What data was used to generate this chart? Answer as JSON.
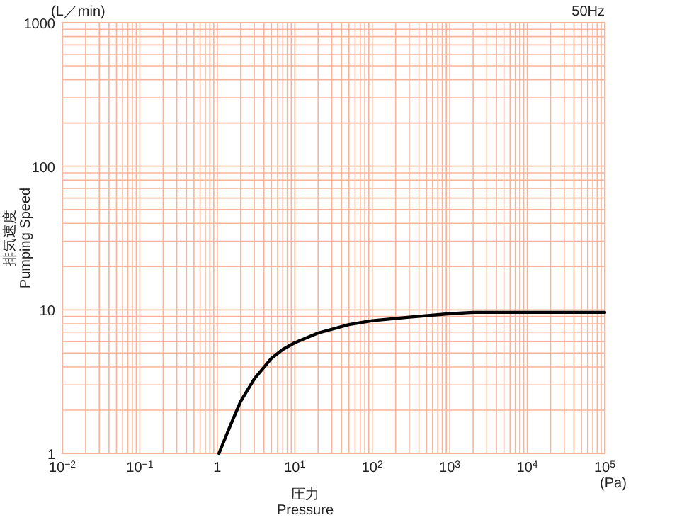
{
  "chart_data": {
    "type": "line",
    "xlabel": "圧力\nPressure",
    "ylabel": "排気速度\nPumping Speed",
    "annotations": [
      "(L／min)",
      "50Hz",
      "(Pa)"
    ],
    "log": "xy",
    "grid": true,
    "line_style": "solid",
    "xlim": [
      0.01,
      100000
    ],
    "ylim": [
      1,
      1000
    ],
    "xticks": [
      {
        "value": 0.01,
        "label": "10$^{−2}$"
      },
      {
        "value": 0.1,
        "label": "10$^{−1}$"
      },
      1,
      {
        "value": 10,
        "label": "10$^{1}$"
      },
      {
        "value": 100,
        "label": "10$^{2}$"
      },
      {
        "value": 1000,
        "label": "10$^{3}$"
      },
      {
        "value": 10000,
        "label": "10$^{4}$"
      },
      {
        "value": 100000,
        "label": "10$^{5}$"
      }
    ],
    "yticks": [
      1,
      10,
      100,
      1000
    ],
    "series": [
      {
        "color": "#000000",
        "x": [
          1.05,
          1.5,
          2,
          3,
          5,
          7,
          10,
          20,
          50,
          100,
          300,
          1000,
          2000,
          100000
        ],
        "values": [
          1,
          1.6,
          2.3,
          3.3,
          4.6,
          5.3,
          5.9,
          6.9,
          7.9,
          8.4,
          8.9,
          9.4,
          9.6,
          9.6
        ]
      }
    ]
  }
}
